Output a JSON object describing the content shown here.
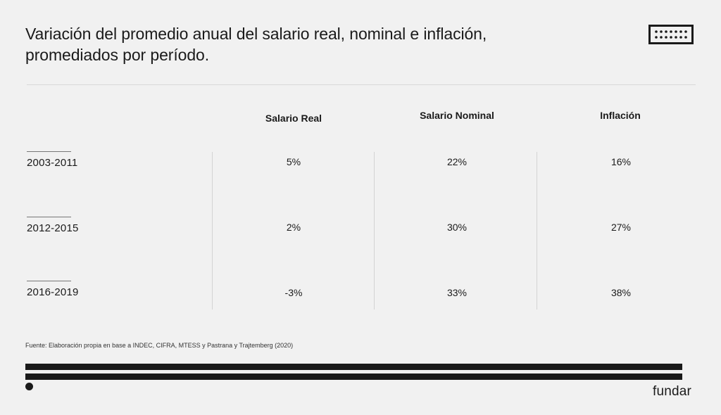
{
  "title": {
    "line1": "Variación del promedio anual del salario real, nominal e inflación,",
    "line2": "promediados por período."
  },
  "icons": {
    "logo": "keyboard-grid-icon",
    "bullet": "dot-icon"
  },
  "colors": {
    "background": "#f1f1f1",
    "text": "#1a1a1a"
  },
  "chart_data": {
    "type": "table",
    "columns": [
      "Salario Real",
      "Salario Nominal",
      "Inflación"
    ],
    "rows": [
      {
        "label": "2003-2011",
        "values": [
          "5%",
          "22%",
          "16%"
        ]
      },
      {
        "label": "2012-2015",
        "values": [
          "2%",
          "30%",
          "27%"
        ]
      },
      {
        "label": "2016-2019",
        "values": [
          "-3%",
          "33%",
          "38%"
        ]
      }
    ]
  },
  "source": "Fuente: Elaboración propia en base a INDEC, CIFRA, MTESS y Pastrana y Trajtemberg (2020)",
  "brand": "fundar"
}
